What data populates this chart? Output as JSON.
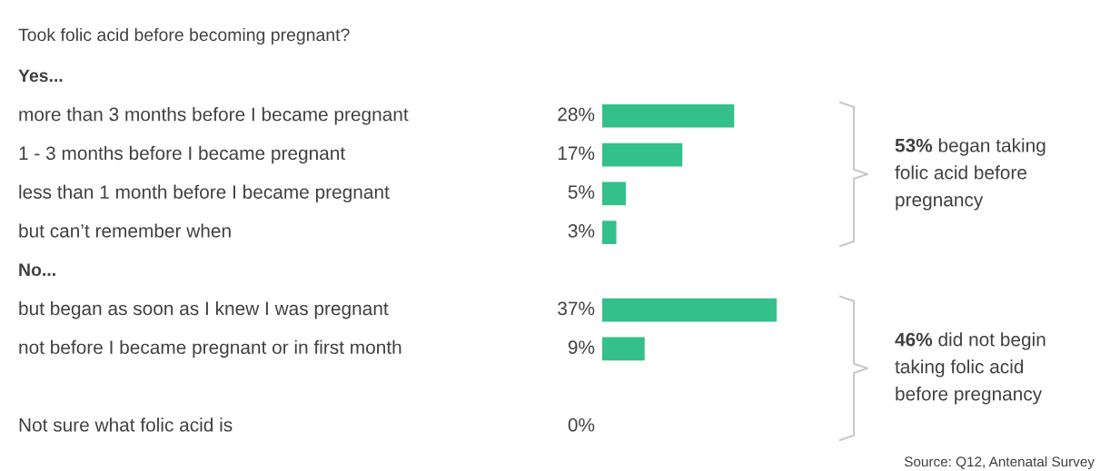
{
  "chart_data": {
    "type": "bar",
    "orientation": "horizontal",
    "title": "Took folic acid before becoming pregnant?",
    "categories": [
      "Yes...",
      "more than 3 months before I became pregnant",
      "1 - 3 months before I became pregnant",
      "less than 1 month before I became pregnant",
      "but can’t remember when",
      "No...",
      "but began as soon as I knew I was pregnant",
      "not before I became pregnant or in first month",
      null,
      "Not sure what folic acid is"
    ],
    "values": [
      null,
      28,
      17,
      5,
      3,
      null,
      37,
      9,
      null,
      0
    ],
    "value_labels": [
      null,
      "28%",
      "17%",
      "5%",
      "3%",
      null,
      "37%",
      "9%",
      null,
      "0%"
    ],
    "color": "#33c08a",
    "annotations": [
      "53% began taking\nfolic acid before\npregnancy",
      "46% did not begin\ntaking folic acid\nbefore pregnancy",
      "Source: Q12, Antenatal Survey"
    ]
  }
}
